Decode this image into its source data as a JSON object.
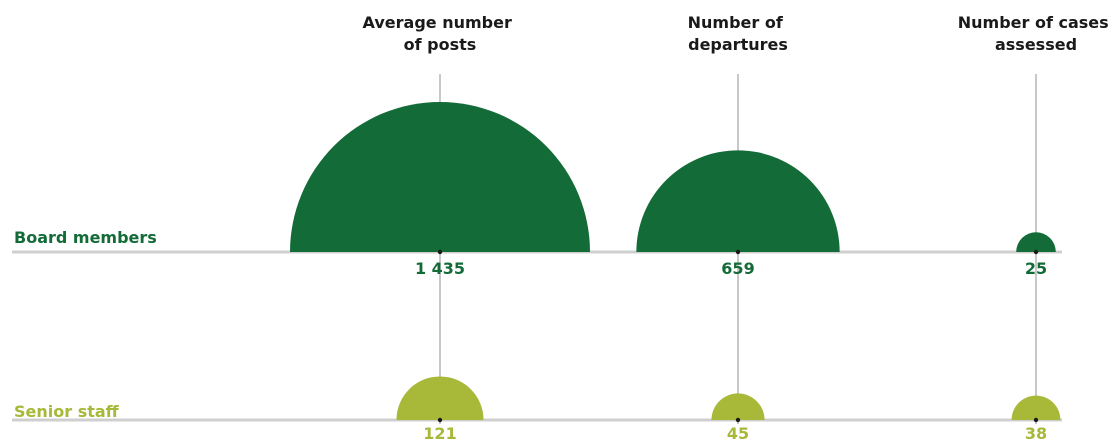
{
  "chart_data": {
    "type": "semicircle-bubble",
    "columns": [
      {
        "title_lines": [
          "Average number",
          "of posts"
        ]
      },
      {
        "title_lines": [
          "Number of",
          "departures"
        ]
      },
      {
        "title_lines": [
          "Number of cases",
          "assessed"
        ]
      }
    ],
    "rows": [
      {
        "label": "Board members",
        "color": "#136b38",
        "values": [
          1435,
          659,
          25
        ],
        "value_labels": [
          "1 435",
          "659",
          "25"
        ]
      },
      {
        "label": "Senior staff",
        "color": "#a8b838",
        "values": [
          121,
          45,
          38
        ],
        "value_labels": [
          "121",
          "45",
          "38"
        ]
      }
    ],
    "colors": {
      "gridline": "#c8c8c8",
      "baseline": "#cfcfcf",
      "title": "#1a1a1a"
    }
  }
}
